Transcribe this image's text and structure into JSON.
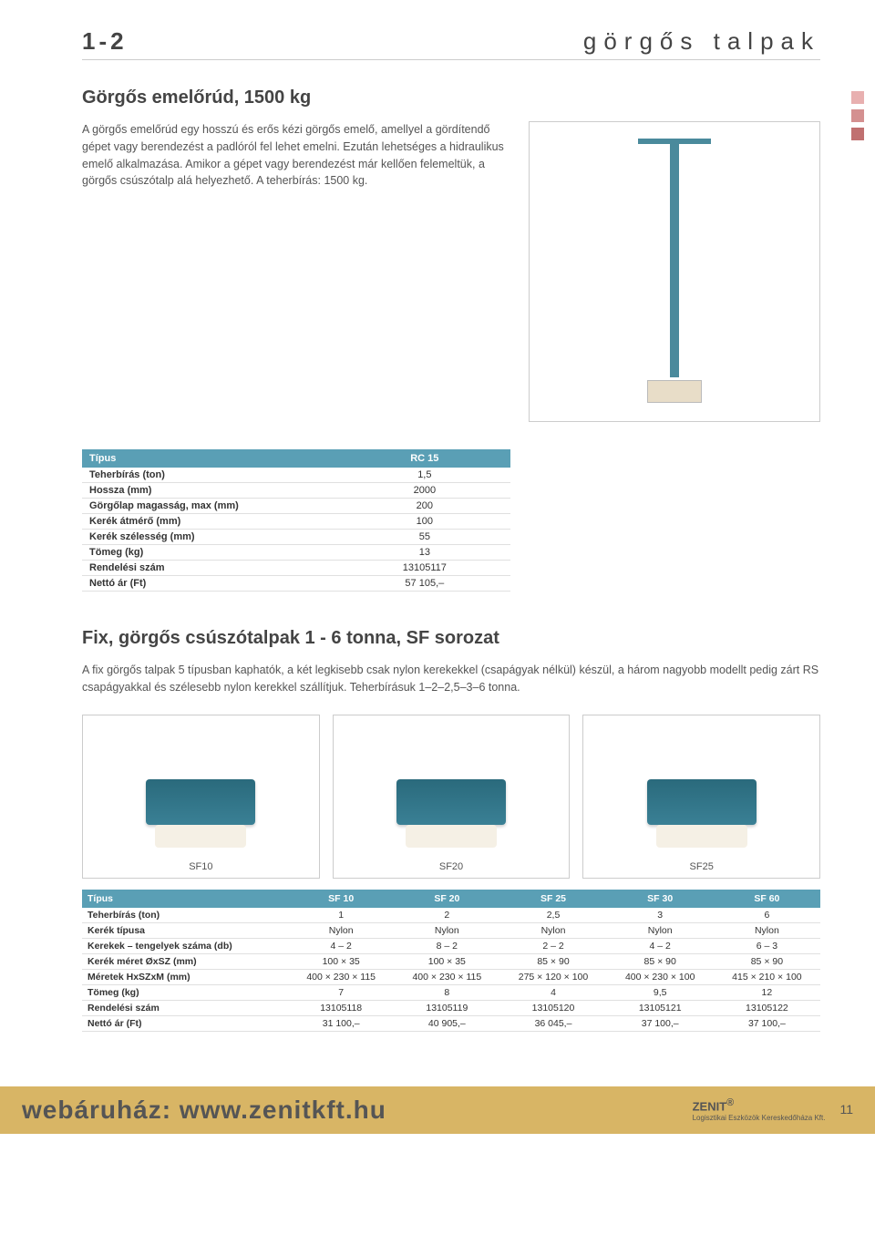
{
  "header": {
    "page_code": "1-2",
    "title": "görgős talpak"
  },
  "section1": {
    "title": "Görgős emelőrúd, 1500 kg",
    "description": "A görgős emelőrúd egy hosszú és erős kézi görgős emelő, amellyel a gördítendő gépet vagy berendezést a padlóról fel lehet emelni. Ezután lehetséges a hidraulikus emelő alkalmazása. Amikor a gépet vagy berendezést már kellően felemeltük, a görgős csúszótalp alá helyezhető. A teherbírás: 1500 kg.",
    "table": {
      "type_label": "Típus",
      "type_value": "RC 15",
      "rows": [
        {
          "label": "Teherbírás (ton)",
          "value": "1,5"
        },
        {
          "label": "Hossza (mm)",
          "value": "2000"
        },
        {
          "label": "Görgőlap magasság, max (mm)",
          "value": "200"
        },
        {
          "label": "Kerék átmérő (mm)",
          "value": "100"
        },
        {
          "label": "Kerék szélesség (mm)",
          "value": "55"
        },
        {
          "label": "Tömeg (kg)",
          "value": "13"
        },
        {
          "label": "Rendelési szám",
          "value": "13105117"
        },
        {
          "label": "Nettó ár (Ft)",
          "value": "57 105,–"
        }
      ]
    }
  },
  "section2": {
    "title": "Fix, görgős csúszótalpak 1 - 6 tonna, SF sorozat",
    "description": "A fix görgős talpak 5 típusban kaphatók, a két legkisebb csak nylon kerekekkel (csapágyak nélkül) készül, a három nagyobb modellt pedig zárt RS csapágyakkal és szélesebb nylon kerekkel szállítjuk. Teherbírásuk 1–2–2,5–3–6 tonna.",
    "products": [
      {
        "label": "SF10"
      },
      {
        "label": "SF20"
      },
      {
        "label": "SF25"
      }
    ],
    "table": {
      "type_label": "Típus",
      "columns": [
        "SF 10",
        "SF 20",
        "SF 25",
        "SF 30",
        "SF 60"
      ],
      "rows": [
        {
          "label": "Teherbírás (ton)",
          "values": [
            "1",
            "2",
            "2,5",
            "3",
            "6"
          ]
        },
        {
          "label": "Kerék típusa",
          "values": [
            "Nylon",
            "Nylon",
            "Nylon",
            "Nylon",
            "Nylon"
          ]
        },
        {
          "label": "Kerekek – tengelyek száma (db)",
          "values": [
            "4 – 2",
            "8 – 2",
            "2 – 2",
            "4 – 2",
            "6 – 3"
          ]
        },
        {
          "label": "Kerék méret ØxSZ (mm)",
          "values": [
            "100 × 35",
            "100 × 35",
            "85 × 90",
            "85 × 90",
            "85 × 90"
          ]
        },
        {
          "label": "Méretek HxSZxM (mm)",
          "values": [
            "400 × 230 × 115",
            "400 × 230 × 115",
            "275 × 120 × 100",
            "400 × 230 × 100",
            "415 × 210 × 100"
          ]
        },
        {
          "label": "Tömeg (kg)",
          "values": [
            "7",
            "8",
            "4",
            "9,5",
            "12"
          ]
        },
        {
          "label": "Rendelési szám",
          "values": [
            "13105118",
            "13105119",
            "13105120",
            "13105121",
            "13105122"
          ]
        },
        {
          "label": "Nettó ár (Ft)",
          "values": [
            "31 100,–",
            "40 905,–",
            "36 045,–",
            "37 100,–",
            "37 100,–"
          ]
        }
      ]
    }
  },
  "footer": {
    "text": "webáruház: www.zenitkft.hu",
    "logo_name": "ZENIT",
    "logo_sub": "Logisztikai Eszközök Kereskedőháza Kft.",
    "page_num": "11"
  },
  "colors": {
    "header_bg": "#5a9fb5",
    "footer_bg": "#d8b565",
    "text_grey": "#555555",
    "border": "#cccccc"
  }
}
